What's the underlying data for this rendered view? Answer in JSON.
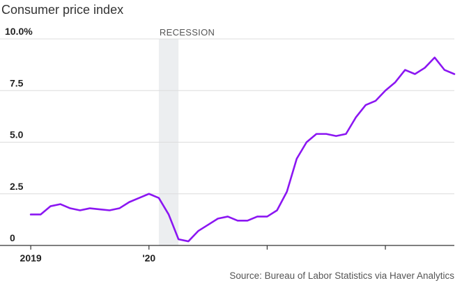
{
  "chart_data": {
    "type": "line",
    "title": "Consumer price index",
    "source": "Source: Bureau of Labor Statistics via Haver Analytics",
    "ylim": [
      0,
      10
    ],
    "yticks": [
      {
        "value": 0,
        "label": "0"
      },
      {
        "value": 2.5,
        "label": "2.5"
      },
      {
        "value": 5,
        "label": "5.0"
      },
      {
        "value": 7.5,
        "label": "7.5"
      },
      {
        "value": 10,
        "label": "10.0%"
      }
    ],
    "xlim": [
      "2018-12",
      "2022-08"
    ],
    "xticks": [
      {
        "x": "2019-01",
        "label": "2019"
      },
      {
        "x": "2020-01",
        "label": "'20"
      },
      {
        "x": "2021-01",
        "label": ""
      },
      {
        "x": "2022-01",
        "label": ""
      }
    ],
    "grid": true,
    "shaded_regions": [
      {
        "label": "RECESSION",
        "start": "2020-02",
        "end": "2020-04"
      }
    ],
    "colors": {
      "line": "#8b16f2",
      "recession": "#eceef0",
      "grid": "#dcdcdc",
      "axis": "#333333"
    },
    "series": [
      {
        "name": "",
        "x": [
          "2019-01",
          "2019-02",
          "2019-03",
          "2019-04",
          "2019-05",
          "2019-06",
          "2019-07",
          "2019-08",
          "2019-09",
          "2019-10",
          "2019-11",
          "2019-12",
          "2020-01",
          "2020-02",
          "2020-03",
          "2020-04",
          "2020-05",
          "2020-06",
          "2020-07",
          "2020-08",
          "2020-09",
          "2020-10",
          "2020-11",
          "2020-12",
          "2021-01",
          "2021-02",
          "2021-03",
          "2021-04",
          "2021-05",
          "2021-06",
          "2021-07",
          "2021-08",
          "2021-09",
          "2021-10",
          "2021-11",
          "2021-12",
          "2022-01",
          "2022-02",
          "2022-03",
          "2022-04",
          "2022-05",
          "2022-06",
          "2022-07",
          "2022-08"
        ],
        "values": [
          1.5,
          1.5,
          1.9,
          2.0,
          1.8,
          1.7,
          1.8,
          1.75,
          1.7,
          1.8,
          2.1,
          2.3,
          2.5,
          2.3,
          1.5,
          0.3,
          0.2,
          0.7,
          1.0,
          1.3,
          1.4,
          1.2,
          1.2,
          1.4,
          1.4,
          1.7,
          2.6,
          4.2,
          5.0,
          5.4,
          5.4,
          5.3,
          5.4,
          6.2,
          6.8,
          7.0,
          7.5,
          7.9,
          8.5,
          8.3,
          8.6,
          9.1,
          8.5,
          8.3
        ]
      }
    ]
  }
}
